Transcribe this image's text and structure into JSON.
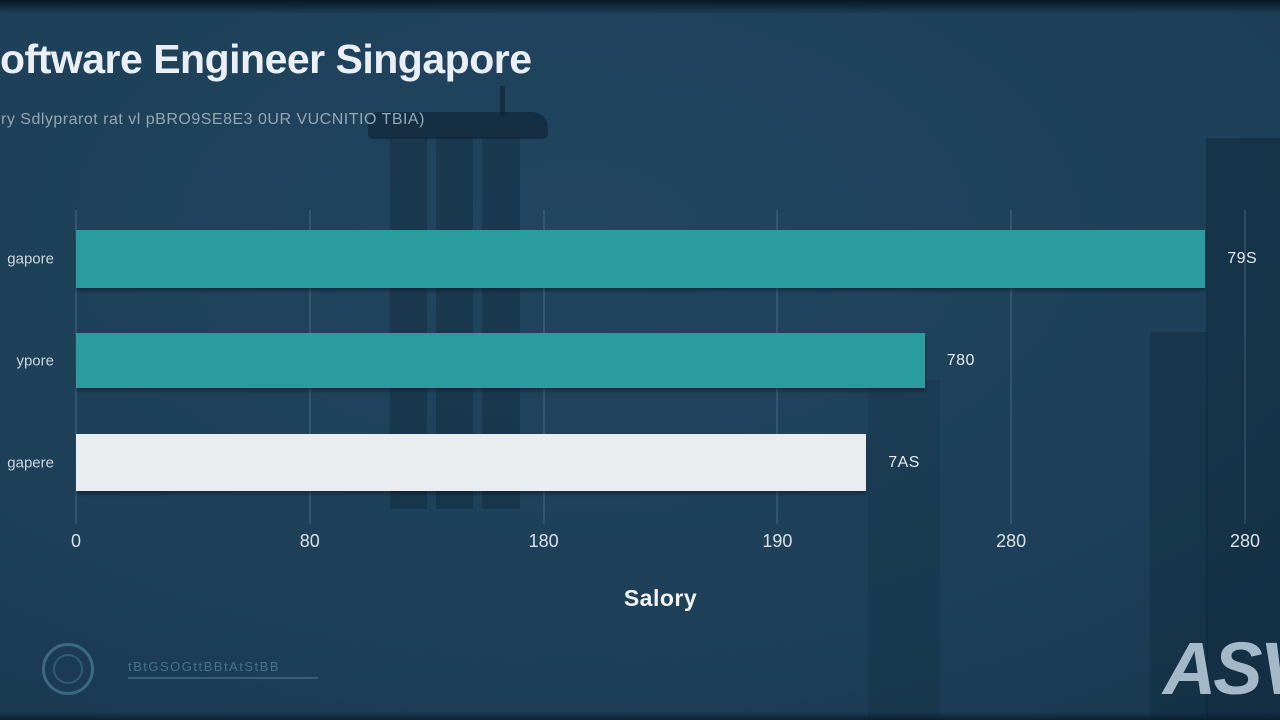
{
  "page": {
    "title": "oftware Engineer Singapore",
    "subtitle": "ry Sdlyprarot rat vl pBRO9SE8E3 0UR VUCNITIO TBIA)"
  },
  "chart_data": {
    "type": "bar",
    "orientation": "horizontal",
    "title": "oftware Engineer Singapore",
    "xlabel": "Salory",
    "ylabel": "",
    "grid": true,
    "x_ticks": [
      "0",
      "80",
      "180",
      "190",
      "280",
      "280"
    ],
    "bars": [
      {
        "category": "gapore",
        "value_label": "79S",
        "length_pct": 96.6,
        "color": "#2a9b9e"
      },
      {
        "category": "ypore",
        "value_label": "780",
        "length_pct": 72.6,
        "color": "#2a9b9e"
      },
      {
        "category": "gapere",
        "value_label": "7AS",
        "length_pct": 67.6,
        "color": "#e9edf0"
      }
    ]
  },
  "footer": {
    "logo_text": "tBtGSOGttBBtAtStBB",
    "watermark": "ASV"
  },
  "colors": {
    "background": "#1d3f57",
    "teal_bar": "#2a9b9e",
    "light_bar": "#e9edf0",
    "title_text": "#e9eff4",
    "subtitle_text": "#93a7b4",
    "tick_text": "#d9e1e7",
    "watermark_text": "#b8ccdb"
  }
}
